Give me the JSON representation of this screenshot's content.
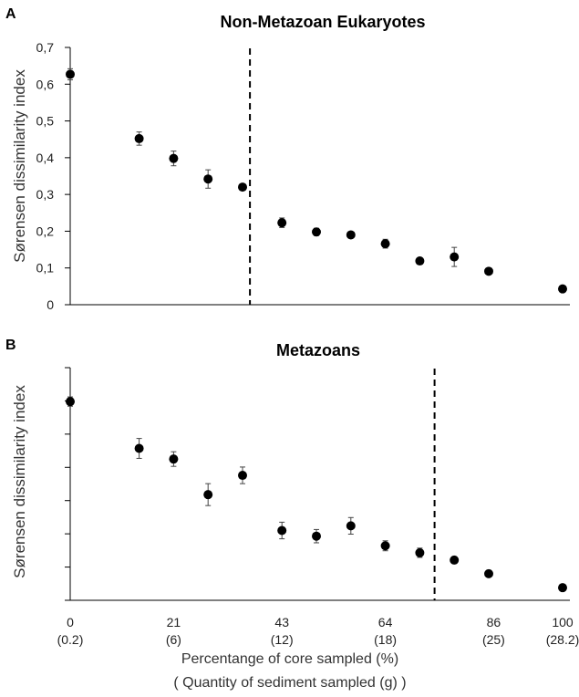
{
  "x_axis": {
    "tick_values": [
      0,
      21,
      43,
      64,
      86,
      100
    ],
    "tick_labels": [
      "0",
      "21",
      "43",
      "64",
      "86",
      "100"
    ],
    "sub_labels": [
      "(0.2)",
      "(6)",
      "(12)",
      "(18)",
      "(25)",
      "(28.2)"
    ],
    "title_line1": "Percentange of core sampled (%)",
    "title_line2": "( Quantity of sediment sampled (g) )"
  },
  "chart_data": [
    {
      "type": "scatter",
      "panel_letter": "A",
      "title": "Non-Metazoan Eukaryotes",
      "ylabel": "Sørensen dissimilarity index",
      "xlim": [
        0,
        100
      ],
      "ylim": [
        0,
        0.7
      ],
      "yticks": [
        0,
        0.1,
        0.2,
        0.3,
        0.4,
        0.5,
        0.6,
        0.7
      ],
      "ytick_labels": [
        "0",
        "0,1",
        "0,2",
        "0,3",
        "0,4",
        "0,5",
        "0,6",
        "0,7"
      ],
      "vline_x": 36.5,
      "error_bars": true,
      "points": [
        {
          "x": 0,
          "y": 0.627,
          "err": 0.015
        },
        {
          "x": 14,
          "y": 0.452,
          "err": 0.018
        },
        {
          "x": 21,
          "y": 0.398,
          "err": 0.02
        },
        {
          "x": 28,
          "y": 0.342,
          "err": 0.025
        },
        {
          "x": 35,
          "y": 0.32,
          "err": 0.005
        },
        {
          "x": 43,
          "y": 0.223,
          "err": 0.013
        },
        {
          "x": 50,
          "y": 0.198,
          "err": 0.01
        },
        {
          "x": 57,
          "y": 0.19,
          "err": 0.005
        },
        {
          "x": 64,
          "y": 0.166,
          "err": 0.012
        },
        {
          "x": 71,
          "y": 0.119,
          "err": 0.006
        },
        {
          "x": 78,
          "y": 0.13,
          "err": 0.026
        },
        {
          "x": 85,
          "y": 0.091,
          "err": 0.005
        },
        {
          "x": 100,
          "y": 0.043,
          "err": 0.005
        }
      ]
    },
    {
      "type": "scatter",
      "panel_letter": "B",
      "title": "Metazoans",
      "ylabel": "Sørensen dissimilarity index",
      "xlim": [
        0,
        100
      ],
      "ylim": [
        0,
        0.7
      ],
      "yticks": [
        0,
        0.1,
        0.2,
        0.3,
        0.4,
        0.5,
        0.6,
        0.7
      ],
      "ytick_labels": [
        "",
        "",
        "",
        "",
        "",
        "",
        "",
        ""
      ],
      "vline_x": 74,
      "error_bars": true,
      "points": [
        {
          "x": 0,
          "y": 0.598,
          "err": 0.014
        },
        {
          "x": 14,
          "y": 0.457,
          "err": 0.03
        },
        {
          "x": 21,
          "y": 0.425,
          "err": 0.022
        },
        {
          "x": 28,
          "y": 0.318,
          "err": 0.033
        },
        {
          "x": 35,
          "y": 0.376,
          "err": 0.025
        },
        {
          "x": 43,
          "y": 0.21,
          "err": 0.025
        },
        {
          "x": 50,
          "y": 0.193,
          "err": 0.02
        },
        {
          "x": 57,
          "y": 0.224,
          "err": 0.025
        },
        {
          "x": 64,
          "y": 0.164,
          "err": 0.015
        },
        {
          "x": 71,
          "y": 0.143,
          "err": 0.014
        },
        {
          "x": 78,
          "y": 0.121,
          "err": 0.01
        },
        {
          "x": 85,
          "y": 0.08,
          "err": 0.01
        },
        {
          "x": 100,
          "y": 0.038,
          "err": 0.005
        }
      ]
    }
  ]
}
